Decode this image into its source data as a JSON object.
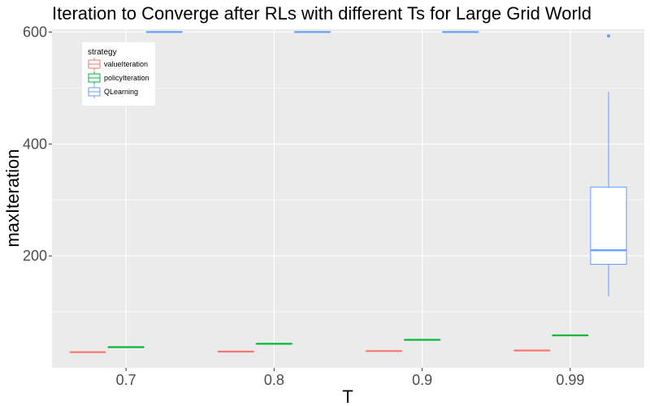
{
  "chart_data": {
    "type": "boxplot",
    "title": "Iteration to Converge after RLs with different Ts for Large Grid World",
    "xlabel": "T",
    "ylabel": "maxIteration",
    "categories": [
      "0.7",
      "0.8",
      "0.9",
      "0.99"
    ],
    "y_ticks": [
      200,
      400,
      600
    ],
    "ylim": [
      0,
      605
    ],
    "grid": true,
    "legend": {
      "title": "strategy",
      "placement": "top-left"
    },
    "colors": {
      "valueIteration": "#F8766D",
      "policyIteration": "#00BA38",
      "QLearning": "#619CFF",
      "panel": "#EBEBEB",
      "grid": "#FFFFFF"
    },
    "series": [
      {
        "name": "valueIteration",
        "boxes": [
          {
            "category": "0.7",
            "min": 28,
            "q1": 28,
            "median": 28,
            "q3": 28,
            "max": 28
          },
          {
            "category": "0.8",
            "min": 29,
            "q1": 29,
            "median": 29,
            "q3": 29,
            "max": 29
          },
          {
            "category": "0.9",
            "min": 30,
            "q1": 30,
            "median": 30,
            "q3": 30,
            "max": 30
          },
          {
            "category": "0.99",
            "min": 31,
            "q1": 31,
            "median": 31,
            "q3": 31,
            "max": 31
          }
        ]
      },
      {
        "name": "policyIteration",
        "boxes": [
          {
            "category": "0.7",
            "min": 37,
            "q1": 37,
            "median": 37,
            "q3": 37,
            "max": 37
          },
          {
            "category": "0.8",
            "min": 43,
            "q1": 43,
            "median": 43,
            "q3": 43,
            "max": 43
          },
          {
            "category": "0.9",
            "min": 50,
            "q1": 50,
            "median": 50,
            "q3": 50,
            "max": 50
          },
          {
            "category": "0.99",
            "min": 58,
            "q1": 58,
            "median": 58,
            "q3": 58,
            "max": 58
          }
        ]
      },
      {
        "name": "QLearning",
        "boxes": [
          {
            "category": "0.7",
            "min": 600,
            "q1": 600,
            "median": 600,
            "q3": 600,
            "max": 600
          },
          {
            "category": "0.8",
            "min": 600,
            "q1": 600,
            "median": 600,
            "q3": 600,
            "max": 600
          },
          {
            "category": "0.9",
            "min": 600,
            "q1": 600,
            "median": 600,
            "q3": 600,
            "max": 600
          },
          {
            "category": "0.99",
            "min": 128,
            "q1": 185,
            "median": 210,
            "q3": 323,
            "max": 493,
            "outliers": [
              593
            ]
          }
        ]
      }
    ]
  }
}
